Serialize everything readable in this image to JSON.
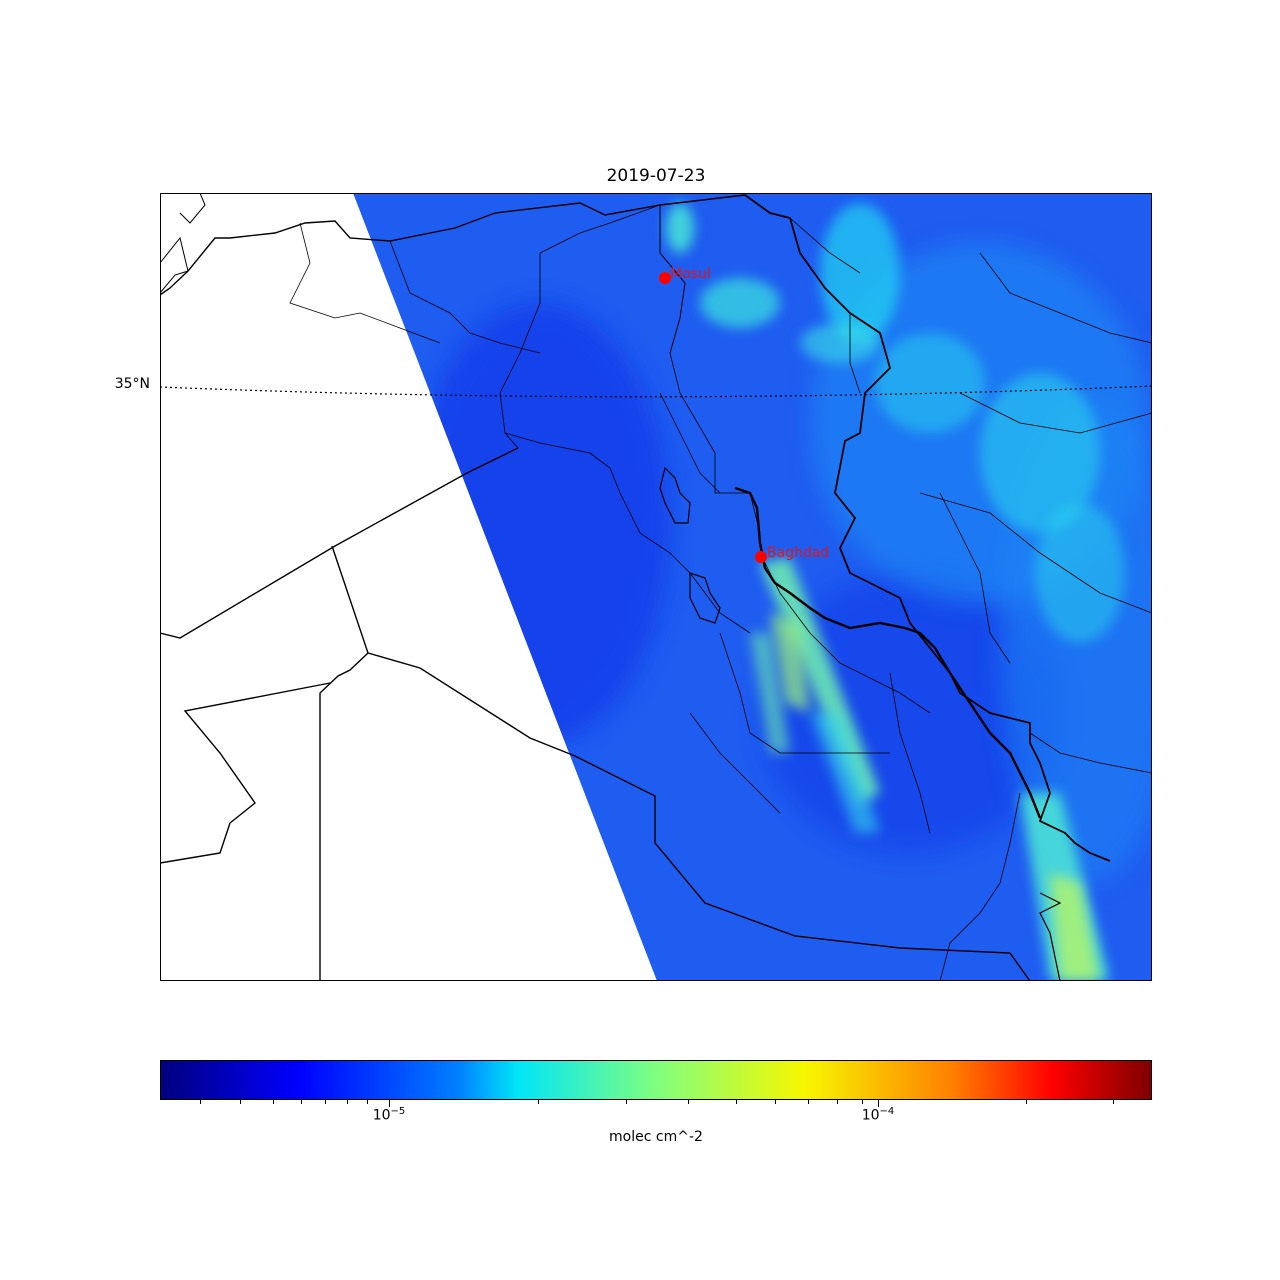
{
  "figure": {
    "title": "2019-07-23",
    "latitude_label": "35°N",
    "colorbar_label": "molec cm^-2",
    "colorbar_ticks": [
      {
        "base": "10",
        "exponent": "−5"
      },
      {
        "base": "10",
        "exponent": "−4"
      }
    ],
    "colormap": "jet",
    "colorbar_scale": "log"
  },
  "cities": [
    {
      "name": "Mosul",
      "marker_color": "#ff0000"
    },
    {
      "name": "Baghdad",
      "marker_color": "#ff0000"
    }
  ],
  "colors": {
    "swath_background": "#1f5cf0",
    "city_text": "#e0161b",
    "border": "#000000"
  }
}
